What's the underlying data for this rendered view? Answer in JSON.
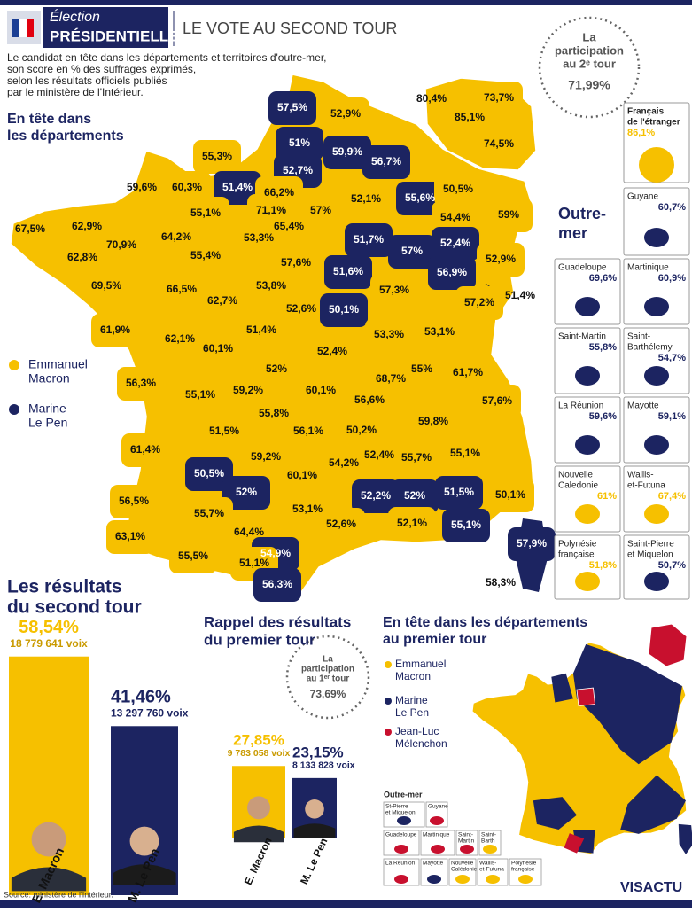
{
  "header": {
    "brand_top": "Élection",
    "brand_bottom": "PRÉSIDENTIELLE",
    "title": "LE VOTE AU SECOND TOUR"
  },
  "intro": [
    "Le candidat en tête dans les départements et territoires d'outre-mer,",
    "son score en % des suffrages exprimés,",
    "selon les résultats officiels publiés",
    "par le ministère de l'Intérieur."
  ],
  "participation_second": {
    "label": [
      "La",
      "participation",
      "au 2ᵉ tour"
    ],
    "value": "71,99%"
  },
  "map": {
    "title": [
      "En tête dans",
      "les départements"
    ],
    "legend": [
      {
        "name": [
          "Emmanuel",
          "Macron"
        ],
        "color": "#f6c000"
      },
      {
        "name": [
          "Marine",
          "Le Pen"
        ],
        "color": "#1c2461"
      }
    ],
    "departments": [
      {
        "label": "57,5%",
        "winner": 1
      },
      {
        "label": "52,9%",
        "winner": 0
      },
      {
        "label": "80,4%",
        "winner": 0
      },
      {
        "label": "73,7%",
        "winner": 0
      },
      {
        "label": "85,1%",
        "winner": 0
      },
      {
        "label": "74,5%",
        "winner": 0
      },
      {
        "label": "51%",
        "winner": 1
      },
      {
        "label": "59,9%",
        "winner": 1
      },
      {
        "label": "56,7%",
        "winner": 1
      },
      {
        "label": "55,3%",
        "winner": 0
      },
      {
        "label": "52,7%",
        "winner": 1
      },
      {
        "label": "59,6%",
        "winner": 0
      },
      {
        "label": "60,3%",
        "winner": 0
      },
      {
        "label": "51,4%",
        "winner": 1
      },
      {
        "label": "66,2%",
        "winner": 0
      },
      {
        "label": "52,1%",
        "winner": 0
      },
      {
        "label": "55,6%",
        "winner": 1
      },
      {
        "label": "50,5%",
        "winner": 0
      },
      {
        "label": "71,1%",
        "winner": 0
      },
      {
        "label": "57%",
        "winner": 0
      },
      {
        "label": "55,1%",
        "winner": 0
      },
      {
        "label": "59%",
        "winner": 0
      },
      {
        "label": "54,4%",
        "winner": 0
      },
      {
        "label": "67,5%",
        "winner": 0
      },
      {
        "label": "62,9%",
        "winner": 0
      },
      {
        "label": "65,4%",
        "winner": 0
      },
      {
        "label": "64,2%",
        "winner": 0
      },
      {
        "label": "53,3%",
        "winner": 0
      },
      {
        "label": "51,7%",
        "winner": 1
      },
      {
        "label": "52,4%",
        "winner": 1
      },
      {
        "label": "70,9%",
        "winner": 0
      },
      {
        "label": "57%",
        "winner": 1
      },
      {
        "label": "62,8%",
        "winner": 0
      },
      {
        "label": "55,4%",
        "winner": 0
      },
      {
        "label": "57,6%",
        "winner": 0
      },
      {
        "label": "52,9%",
        "winner": 0
      },
      {
        "label": "51,6%",
        "winner": 1
      },
      {
        "label": "56,9%",
        "winner": 1
      },
      {
        "label": "69,5%",
        "winner": 0
      },
      {
        "label": "66,5%",
        "winner": 0
      },
      {
        "label": "53,8%",
        "winner": 0
      },
      {
        "label": "57,3%",
        "winner": 0
      },
      {
        "label": "51,4%",
        "winner": 0
      },
      {
        "label": "62,7%",
        "winner": 0
      },
      {
        "label": "57,2%",
        "winner": 0
      },
      {
        "label": "52,6%",
        "winner": 0
      },
      {
        "label": "50,1%",
        "winner": 1
      },
      {
        "label": "61,9%",
        "winner": 0
      },
      {
        "label": "51,4%",
        "winner": 0
      },
      {
        "label": "53,3%",
        "winner": 0
      },
      {
        "label": "53,1%",
        "winner": 0
      },
      {
        "label": "62,1%",
        "winner": 0
      },
      {
        "label": "60,1%",
        "winner": 0
      },
      {
        "label": "52,4%",
        "winner": 0
      },
      {
        "label": "61,7%",
        "winner": 0
      },
      {
        "label": "52%",
        "winner": 0
      },
      {
        "label": "55%",
        "winner": 0
      },
      {
        "label": "68,7%",
        "winner": 0
      },
      {
        "label": "56,3%",
        "winner": 0
      },
      {
        "label": "55,1%",
        "winner": 0
      },
      {
        "label": "59,2%",
        "winner": 0
      },
      {
        "label": "60,1%",
        "winner": 0
      },
      {
        "label": "57,6%",
        "winner": 0
      },
      {
        "label": "56,6%",
        "winner": 0
      },
      {
        "label": "55,8%",
        "winner": 0
      },
      {
        "label": "59,8%",
        "winner": 0
      },
      {
        "label": "51,5%",
        "winner": 0
      },
      {
        "label": "56,1%",
        "winner": 0
      },
      {
        "label": "50,2%",
        "winner": 0
      },
      {
        "label": "61,4%",
        "winner": 0
      },
      {
        "label": "55,1%",
        "winner": 0
      },
      {
        "label": "52,4%",
        "winner": 0
      },
      {
        "label": "59,2%",
        "winner": 0
      },
      {
        "label": "55,7%",
        "winner": 0
      },
      {
        "label": "54,2%",
        "winner": 0
      },
      {
        "label": "50,5%",
        "winner": 1
      },
      {
        "label": "60,1%",
        "winner": 0
      },
      {
        "label": "52%",
        "winner": 1
      },
      {
        "label": "51,5%",
        "winner": 1
      },
      {
        "label": "50,1%",
        "winner": 0
      },
      {
        "label": "52,2%",
        "winner": 1
      },
      {
        "label": "52%",
        "winner": 1
      },
      {
        "label": "56,5%",
        "winner": 0
      },
      {
        "label": "53,1%",
        "winner": 0
      },
      {
        "label": "55,7%",
        "winner": 0
      },
      {
        "label": "52,6%",
        "winner": 0
      },
      {
        "label": "52,1%",
        "winner": 0
      },
      {
        "label": "55,1%",
        "winner": 1
      },
      {
        "label": "64,4%",
        "winner": 0
      },
      {
        "label": "63,1%",
        "winner": 0
      },
      {
        "label": "57,9%",
        "winner": 1
      },
      {
        "label": "54,9%",
        "winner": 1
      },
      {
        "label": "55,5%",
        "winner": 0
      },
      {
        "label": "51,1%",
        "winner": 0
      },
      {
        "label": "56,3%",
        "winner": 1
      },
      {
        "label": "58,3%",
        "winner": 1
      }
    ]
  },
  "overseas": {
    "title": [
      "Outre-",
      "mer"
    ],
    "territories": [
      {
        "name": [
          "Français",
          "de l'étranger"
        ],
        "score": "86,1%",
        "winner": 0
      },
      {
        "name": [
          "Guyane"
        ],
        "score": "60,7%",
        "winner": 1
      },
      {
        "name": [
          "Guadeloupe"
        ],
        "score": "69,6%",
        "winner": 1
      },
      {
        "name": [
          "Martinique"
        ],
        "score": "60,9%",
        "winner": 1
      },
      {
        "name": [
          "Saint-Martin"
        ],
        "score": "55,8%",
        "winner": 1
      },
      {
        "name": [
          "Saint-",
          "Barthélemy"
        ],
        "score": "54,7%",
        "winner": 1
      },
      {
        "name": [
          "La Réunion"
        ],
        "score": "59,6%",
        "winner": 1
      },
      {
        "name": [
          "Mayotte"
        ],
        "score": "59,1%",
        "winner": 1
      },
      {
        "name": [
          "Nouvelle",
          "Caledonie"
        ],
        "score": "61%",
        "winner": 0
      },
      {
        "name": [
          "Wallis-",
          "et-Futuna"
        ],
        "score": "67,4%",
        "winner": 0
      },
      {
        "name": [
          "Polynésie",
          "française"
        ],
        "score": "51,8%",
        "winner": 0
      },
      {
        "name": [
          "Saint-Pierre",
          "et Miquelon"
        ],
        "score": "50,7%",
        "winner": 1
      }
    ]
  },
  "chart_data": [
    {
      "type": "bar",
      "title": [
        "Les résultats",
        "du second tour"
      ],
      "categories": [
        "E. Macron",
        "M. Le Pen"
      ],
      "values": [
        58.54,
        41.46
      ],
      "value_labels": [
        "58,54%",
        "41,46%"
      ],
      "votes": [
        "18 779 641 voix",
        "13 297 760 voix"
      ],
      "colors": [
        "#f6c000",
        "#1c2461"
      ]
    },
    {
      "type": "bar",
      "title": [
        "Rappel des résultats",
        "du premier tour"
      ],
      "categories": [
        "E. Macron",
        "M. Le Pen"
      ],
      "values": [
        27.85,
        23.15
      ],
      "value_labels": [
        "27,85%",
        "23,15%"
      ],
      "votes": [
        "9 783 058 voix",
        "8 133 828 voix"
      ],
      "colors": [
        "#f6c000",
        "#1c2461"
      ]
    }
  ],
  "participation_first": {
    "label": [
      "La",
      "participation",
      "au 1ᵉʳ tour"
    ],
    "value": "73,69%"
  },
  "first_round_map": {
    "title": [
      "En tête dans les départements",
      "au premier tour"
    ],
    "legend": [
      {
        "name": [
          "Emmanuel",
          "Macron"
        ],
        "color": "#f6c000"
      },
      {
        "name": [
          "Marine",
          "Le Pen"
        ],
        "color": "#1c2461"
      },
      {
        "name": [
          "Jean-Luc",
          "Mélenchon"
        ],
        "color": "#c8102e"
      }
    ],
    "overseas_title": "Outre-mer",
    "territories": [
      {
        "name": [
          "St-Pierre",
          "et Miquelon"
        ],
        "winner": 1
      },
      {
        "name": [
          "Guyane"
        ],
        "winner": 2
      },
      {
        "name": [
          "Guadeloupe"
        ],
        "winner": 2
      },
      {
        "name": [
          "Martinique"
        ],
        "winner": 2
      },
      {
        "name": [
          "Saint-",
          "Martin"
        ],
        "winner": 2
      },
      {
        "name": [
          "Saint-",
          "Barth"
        ],
        "winner": 0
      },
      {
        "name": [
          "La Réunion"
        ],
        "winner": 2
      },
      {
        "name": [
          "Mayotte"
        ],
        "winner": 1
      },
      {
        "name": [
          "Nouvelle",
          "Calédonie"
        ],
        "winner": 0
      },
      {
        "name": [
          "Wallis-",
          "et-Futuna"
        ],
        "winner": 0
      },
      {
        "name": [
          "Polynésie",
          "française"
        ],
        "winner": 0
      }
    ]
  },
  "source": "Source: ministère de l'Intérieur.",
  "logo": "VISACTU"
}
